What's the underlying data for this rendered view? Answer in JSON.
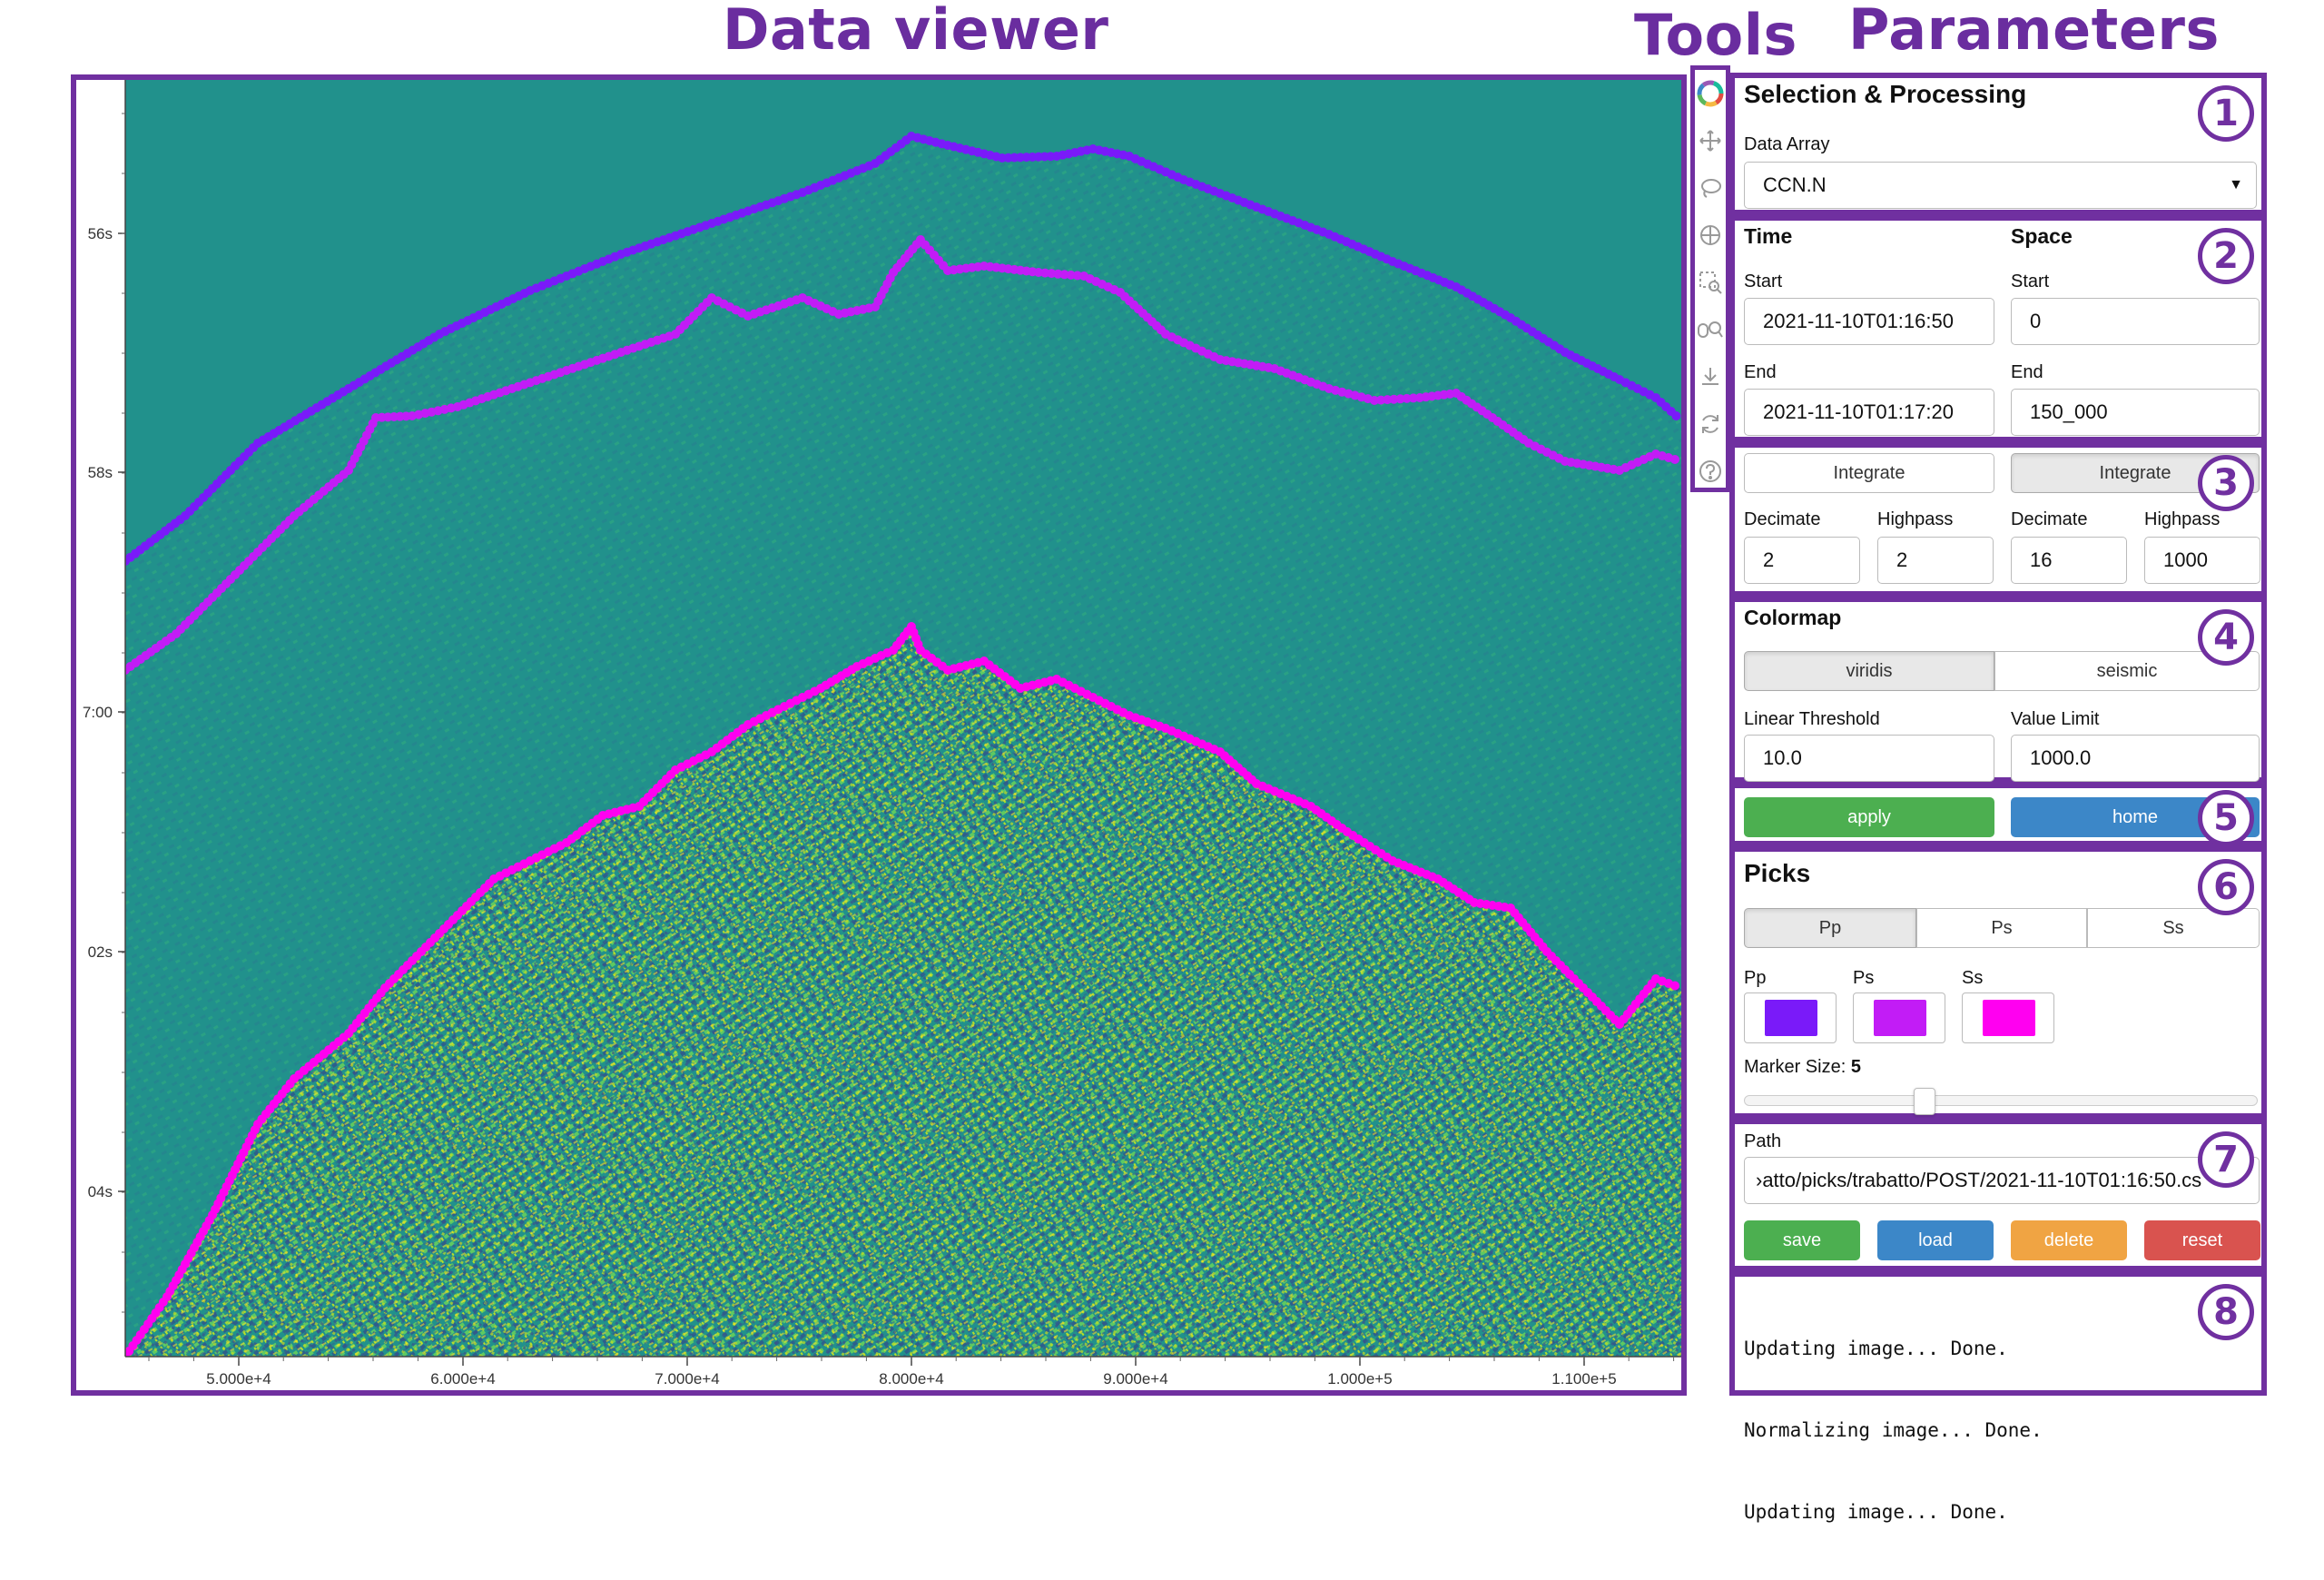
{
  "headings": {
    "data_viewer": "Data viewer",
    "tools": "Tools",
    "parameters": "Parameters"
  },
  "panel_numbers": [
    "1",
    "2",
    "3",
    "4",
    "5",
    "6",
    "7",
    "8"
  ],
  "viewer": {
    "y_ticks": [
      "56s",
      "58s",
      "7:00",
      "02s",
      "04s"
    ],
    "x_ticks": [
      "5.000e+4",
      "6.000e+4",
      "7.000e+4",
      "8.000e+4",
      "9.000e+4",
      "1.000e+5",
      "1.100e+5"
    ],
    "background_color": "#21918c"
  },
  "tools": [
    "bokeh-logo-icon",
    "pan-icon",
    "lasso-icon",
    "crosshair-icon",
    "box-zoom-icon",
    "wheel-zoom-icon",
    "save-icon",
    "reset-icon",
    "help-icon"
  ],
  "selection": {
    "title": "Selection & Processing",
    "data_array_label": "Data Array",
    "data_array_value": "CCN.N"
  },
  "time_space": {
    "time_title": "Time",
    "space_title": "Space",
    "start_label": "Start",
    "end_label": "End",
    "time_start": "2021-11-10T01:16:50",
    "time_end": "2021-11-10T01:17:20",
    "space_start": "0",
    "space_end": "150_000"
  },
  "processing": {
    "integrate_label": "Integrate",
    "decimate_label": "Decimate",
    "highpass_label": "Highpass",
    "time_decimate": "2",
    "time_highpass": "2",
    "space_decimate": "16",
    "space_highpass": "1000"
  },
  "colormap": {
    "title": "Colormap",
    "options": [
      "viridis",
      "seismic"
    ],
    "selected": "viridis",
    "linear_threshold_label": "Linear Threshold",
    "linear_threshold_value": "10.0",
    "value_limit_label": "Value Limit",
    "value_limit_value": "1000.0"
  },
  "actions": {
    "apply_label": "apply",
    "home_label": "home",
    "apply_color": "#4caf50",
    "home_color": "#3c87c8"
  },
  "picks": {
    "title": "Picks",
    "tabs": [
      "Pp",
      "Ps",
      "Ss"
    ],
    "selected_tab": "Pp",
    "color_labels": [
      "Pp",
      "Ps",
      "Ss"
    ],
    "colors": {
      "Pp": "#7a1af9",
      "Ps": "#c21cf6",
      "Ss": "#ff00f0"
    },
    "marker_size_label": "Marker Size: ",
    "marker_size_value": "5",
    "marker_size_fraction": 0.35
  },
  "file": {
    "path_label": "Path",
    "path_value": "›atto/picks/trabatto/POST/2021-11-10T01:16:50.cs",
    "save_label": "save",
    "load_label": "load",
    "delete_label": "delete",
    "reset_label": "reset",
    "save_color": "#4caf50",
    "load_color": "#3c87c8",
    "delete_color": "#f0a443",
    "reset_color": "#d9534f"
  },
  "log": {
    "lines": [
      "Updating image... Done.",
      "Normalizing image... Done.",
      "Updating image... Done."
    ]
  }
}
